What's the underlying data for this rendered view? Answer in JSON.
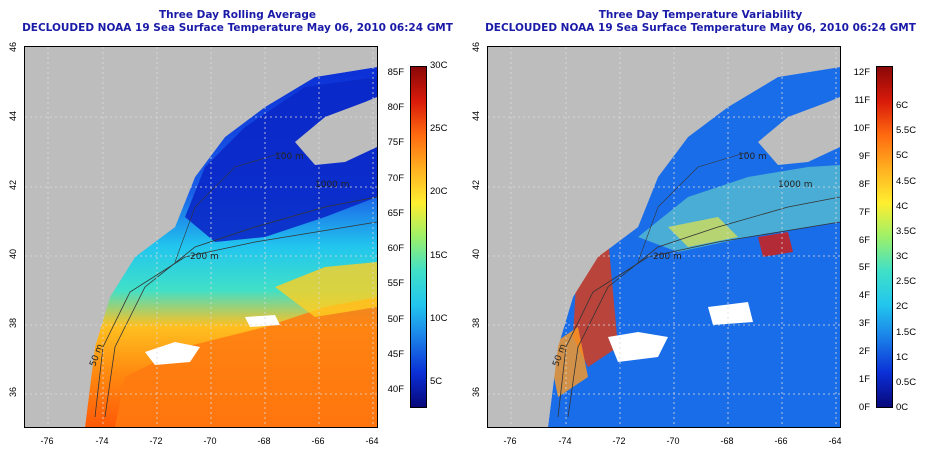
{
  "left_panel": {
    "title": "Three Day Rolling Average",
    "subtitle": "DECLOUDED NOAA 19 Sea Surface Temperature May 06, 2010 06:24 GMT",
    "fahrenheit_ticks": [
      "85F",
      "80F",
      "75F",
      "70F",
      "65F",
      "60F",
      "55F",
      "50F",
      "45F",
      "40F"
    ],
    "celsius_ticks": [
      "30C",
      "25C",
      "20C",
      "15C",
      "10C",
      "5C"
    ],
    "colorbar_colors": [
      "#08087a",
      "#0b2fd6",
      "#1a7de8",
      "#22c6ee",
      "#40e0c8",
      "#9cf06a",
      "#ffee30",
      "#ffb020",
      "#ff6a10",
      "#d81a0a",
      "#8a0808"
    ]
  },
  "right_panel": {
    "title": "Three Day Temperature Variability",
    "subtitle": "DECLOUDED NOAA 19 Sea Surface Temperature May 06, 2010 06:24 GMT",
    "fahrenheit_ticks": [
      "12F",
      "11F",
      "10F",
      "9F",
      "8F",
      "7F",
      "6F",
      "5F",
      "4F",
      "3F",
      "2F",
      "1F",
      "0F"
    ],
    "celsius_ticks": [
      "6C",
      "5.5C",
      "5C",
      "4.5C",
      "4C",
      "3.5C",
      "3C",
      "2.5C",
      "2C",
      "1.5C",
      "1C",
      "0.5C",
      "0C"
    ],
    "colorbar_colors": [
      "#08087a",
      "#0b2fd6",
      "#1a7de8",
      "#22c6ee",
      "#40e0c8",
      "#9cf06a",
      "#ffee30",
      "#ffb020",
      "#ff6a10",
      "#d81a0a",
      "#8a0808"
    ]
  },
  "axes": {
    "longitude_ticks": [
      "-76",
      "-74",
      "-72",
      "-70",
      "-68",
      "-66",
      "-64"
    ],
    "latitude_ticks": [
      "46",
      "44",
      "42",
      "40",
      "38",
      "36"
    ]
  },
  "contour_labels": [
    "100 m",
    "1000 m",
    "200 m",
    "50 m"
  ],
  "colors": {
    "land": "#bdbdbd",
    "title": "#1a1aa8"
  }
}
